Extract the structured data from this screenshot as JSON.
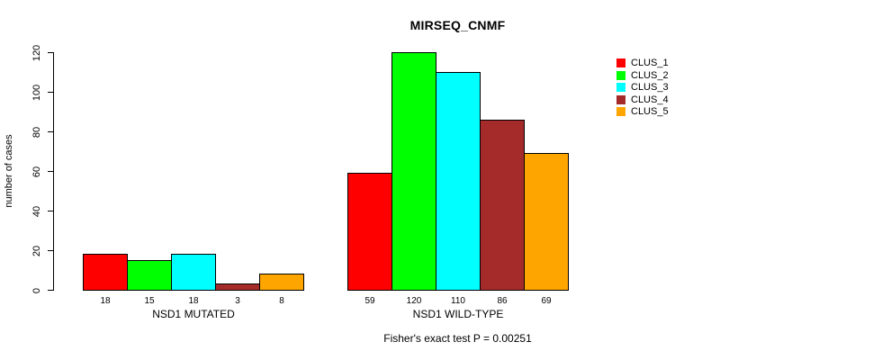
{
  "title": "MIRSEQ_CNMF",
  "y_axis_label": "number of cases",
  "caption": "Fisher's exact test P = 0.00251",
  "chart_data": {
    "type": "bar",
    "title": "MIRSEQ_CNMF",
    "xlabel": "",
    "ylabel": "number of cases",
    "ylim": [
      0,
      120
    ],
    "yticks": [
      0,
      20,
      40,
      60,
      80,
      100,
      120
    ],
    "grid": false,
    "bar_value_labels_shown": true,
    "bar_border_color": "#000000",
    "categories": [
      "NSD1 MUTATED",
      "NSD1 WILD-TYPE"
    ],
    "series": [
      {
        "name": "CLUS_1",
        "color": "#ff0000",
        "values": [
          18,
          59
        ]
      },
      {
        "name": "CLUS_2",
        "color": "#00ff00",
        "values": [
          15,
          120
        ]
      },
      {
        "name": "CLUS_3",
        "color": "#00ffff",
        "values": [
          18,
          110
        ]
      },
      {
        "name": "CLUS_4",
        "color": "#a52a2a",
        "values": [
          3,
          86
        ]
      },
      {
        "name": "CLUS_5",
        "color": "#ffa500",
        "values": [
          8,
          69
        ]
      }
    ],
    "legend": {
      "position": "right",
      "entries": [
        "CLUS_1",
        "CLUS_2",
        "CLUS_3",
        "CLUS_4",
        "CLUS_5"
      ]
    },
    "annotation": "Fisher's exact test P = 0.00251"
  }
}
